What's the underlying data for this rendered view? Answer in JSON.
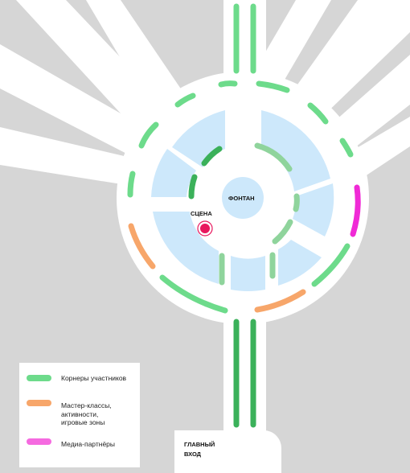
{
  "labels": {
    "fountain": "ФОНТАН",
    "stage": "СЦЕНА",
    "entrance": "ГЛАВНЫЙ\nВХОД"
  },
  "legend": {
    "items": [
      {
        "label": "Корнеры участников",
        "color": "#6ddb8b"
      },
      {
        "label": "Мастер-классы,\nактивности,\nигровые зоны",
        "color": "#f7a66a"
      },
      {
        "label": "Медиа-партнёры",
        "color": "#f56ae0"
      }
    ]
  },
  "colors": {
    "background": "#d6d6d6",
    "road": "#ffffff",
    "zone": "#cde8fb",
    "corner_light": "#6ddb8b",
    "corner_dark": "#3bb15a",
    "inner_light": "#8fd49c",
    "workshop": "#f7a66a",
    "media": "#f02ad6",
    "stage": "#e8185e"
  }
}
